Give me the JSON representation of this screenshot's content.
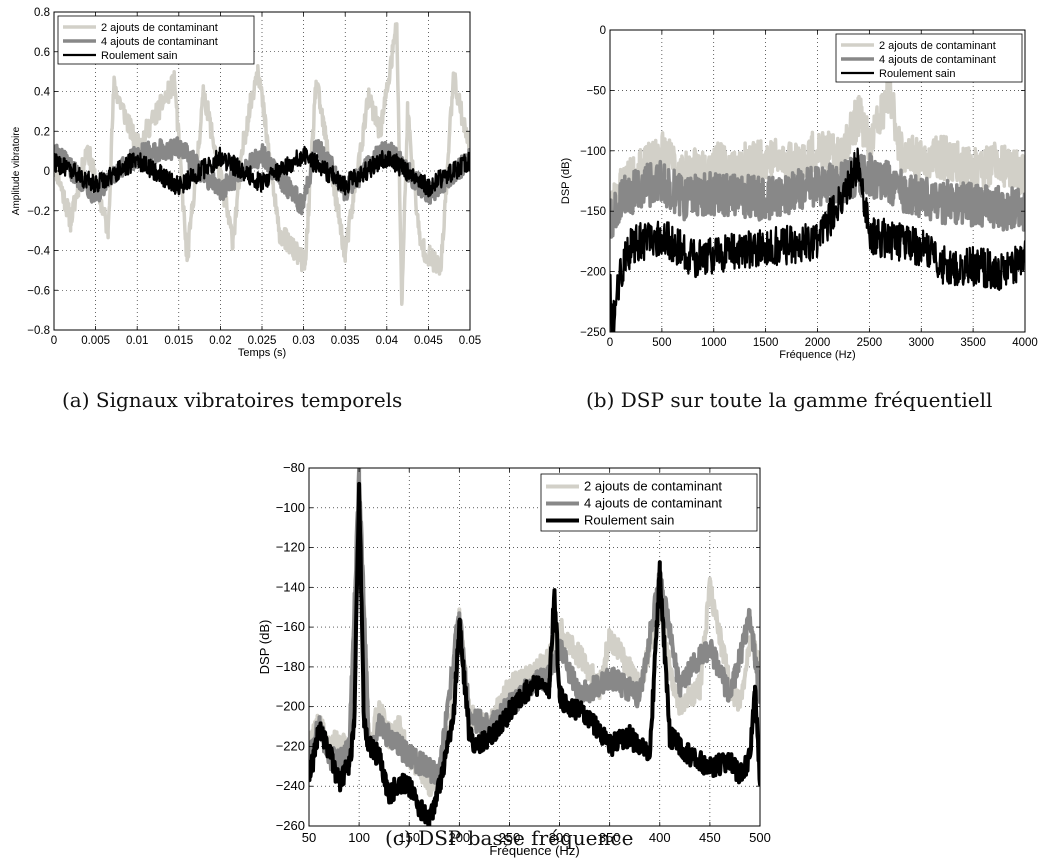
{
  "colors": {
    "light_gray": "#d2d0c8",
    "mid_gray": "#888888",
    "black": "#000000"
  },
  "captions": {
    "a": "(a) Signaux vibratoires temporels",
    "b": "(b) DSP sur toute la gamme fréquentiell",
    "c": "(c) DSP basse fréquence"
  },
  "chart_data": [
    {
      "id": "a",
      "type": "line",
      "title": "",
      "xlabel": "Temps (s)",
      "ylabel": "Amplitude vibratoire",
      "xlim": [
        0,
        0.05
      ],
      "ylim": [
        -0.8,
        0.8
      ],
      "xticks": [
        0,
        0.005,
        0.01,
        0.015,
        0.02,
        0.025,
        0.03,
        0.035,
        0.04,
        0.045,
        0.05
      ],
      "xtick_labels": [
        "0",
        "0.005",
        "0.01",
        "0.015",
        "0.02",
        "0.025",
        "0.03",
        "0.035",
        "0.04",
        "0.045",
        "0.05"
      ],
      "yticks": [
        -0.8,
        -0.6,
        -0.4,
        -0.2,
        0,
        0.2,
        0.4,
        0.6,
        0.8
      ],
      "ytick_labels": [
        "−0.8",
        "−0.6",
        "−0.4",
        "−0.2",
        "0",
        "0.2",
        "0.4",
        "0.6",
        "0.8"
      ],
      "grid": true,
      "legend_position": "top-left",
      "series": [
        {
          "name": "2 ajouts de contaminant",
          "color": "light_gray",
          "x": [
            0,
            0.002,
            0.004,
            0.0065,
            0.0072,
            0.01,
            0.0145,
            0.016,
            0.018,
            0.0215,
            0.0228,
            0.0245,
            0.027,
            0.0302,
            0.0315,
            0.035,
            0.0378,
            0.0392,
            0.0402,
            0.0412,
            0.0418,
            0.0425,
            0.044,
            0.0465,
            0.048,
            0.05
          ],
          "y": [
            0.05,
            -0.25,
            0.12,
            -0.3,
            0.43,
            0.12,
            0.45,
            -0.45,
            0.4,
            -0.35,
            0.15,
            0.53,
            -0.3,
            -0.47,
            0.45,
            -0.42,
            0.37,
            0.2,
            0.45,
            0.74,
            -0.67,
            0.3,
            -0.37,
            -0.5,
            0.48,
            0.1
          ]
        },
        {
          "name": "4 ajouts de contaminant",
          "color": "mid_gray",
          "x": [
            0,
            0.005,
            0.01,
            0.015,
            0.02,
            0.025,
            0.03,
            0.0315,
            0.035,
            0.04,
            0.045,
            0.05
          ],
          "y": [
            0.1,
            -0.12,
            0.08,
            0.12,
            -0.1,
            0.08,
            -0.18,
            0.15,
            -0.1,
            0.12,
            -0.12,
            0.06
          ]
        },
        {
          "name": "Roulement sain",
          "color": "black",
          "x": [
            0,
            0.005,
            0.01,
            0.015,
            0.02,
            0.025,
            0.03,
            0.035,
            0.04,
            0.045,
            0.05
          ],
          "y": [
            0.05,
            -0.07,
            0.06,
            -0.08,
            0.07,
            -0.06,
            0.08,
            -0.07,
            0.07,
            -0.08,
            0.05
          ]
        }
      ]
    },
    {
      "id": "b",
      "type": "line",
      "title": "",
      "xlabel": "Fréquence (Hz)",
      "ylabel": "DSP (dB)",
      "xlim": [
        0,
        4000
      ],
      "ylim": [
        -250,
        0
      ],
      "xticks": [
        0,
        500,
        1000,
        1500,
        2000,
        2500,
        3000,
        3500,
        4000
      ],
      "xtick_labels": [
        "0",
        "500",
        "1000",
        "1500",
        "2000",
        "2500",
        "3000",
        "3500",
        "4000"
      ],
      "yticks": [
        -250,
        -200,
        -150,
        -100,
        -50,
        0
      ],
      "ytick_labels": [
        "−250",
        "−200",
        "−150",
        "−100",
        "−50",
        "0"
      ],
      "grid": true,
      "legend_position": "top-right",
      "series": [
        {
          "name": "2 ajouts de contaminant",
          "color": "light_gray",
          "x": [
            0,
            100,
            250,
            400,
            500,
            700,
            1000,
            1200,
            1500,
            1800,
            2000,
            2200,
            2400,
            2500,
            2700,
            2800,
            3000,
            3200,
            3500,
            3700,
            4000
          ],
          "y": [
            -150,
            -130,
            -120,
            -110,
            -100,
            -120,
            -110,
            -115,
            -105,
            -110,
            -100,
            -105,
            -70,
            -95,
            -50,
            -100,
            -110,
            -105,
            -115,
            -110,
            -120
          ]
        },
        {
          "name": "4 ajouts de contaminant",
          "color": "mid_gray",
          "x": [
            0,
            100,
            300,
            500,
            700,
            1000,
            1500,
            2000,
            2500,
            3000,
            3500,
            4000
          ],
          "y": [
            -160,
            -140,
            -130,
            -125,
            -140,
            -135,
            -140,
            -130,
            -120,
            -140,
            -145,
            -150
          ]
        },
        {
          "name": "Roulement sain",
          "color": "black",
          "x": [
            0,
            20,
            50,
            100,
            200,
            300,
            500,
            800,
            1000,
            1500,
            2000,
            2400,
            2500,
            2800,
            3000,
            3300,
            3500,
            3800,
            4000
          ],
          "y": [
            -210,
            -245,
            -230,
            -200,
            -180,
            -175,
            -170,
            -190,
            -185,
            -180,
            -175,
            -110,
            -170,
            -175,
            -180,
            -200,
            -195,
            -200,
            -190
          ]
        }
      ]
    },
    {
      "id": "c",
      "type": "line",
      "title": "",
      "xlabel": "Fréquence (Hz)",
      "ylabel": "DSP (dB)",
      "xlim": [
        50,
        500
      ],
      "ylim": [
        -260,
        -80
      ],
      "xticks": [
        50,
        100,
        150,
        200,
        250,
        300,
        350,
        400,
        450,
        500
      ],
      "xtick_labels": [
        "50",
        "100",
        "150",
        "200",
        "250",
        "300",
        "350",
        "400",
        "450",
        "500"
      ],
      "yticks": [
        -260,
        -240,
        -220,
        -200,
        -180,
        -160,
        -140,
        -120,
        -100,
        -80
      ],
      "ytick_labels": [
        "−260",
        "−240",
        "−220",
        "−200",
        "−180",
        "−160",
        "−140",
        "−120",
        "−100",
        "−80"
      ],
      "grid": true,
      "legend_position": "top-right",
      "series": [
        {
          "name": "2 ajouts de contaminant",
          "color": "light_gray",
          "x": [
            50,
            60,
            70,
            80,
            90,
            100,
            110,
            120,
            130,
            140,
            150,
            160,
            170,
            180,
            190,
            200,
            210,
            230,
            250,
            270,
            290,
            300,
            320,
            340,
            350,
            380,
            400,
            410,
            420,
            440,
            450,
            470,
            480,
            490,
            500
          ],
          "y": [
            -215,
            -208,
            -222,
            -215,
            -225,
            -92,
            -220,
            -200,
            -215,
            -210,
            -225,
            -230,
            -240,
            -235,
            -215,
            -155,
            -205,
            -210,
            -190,
            -185,
            -175,
            -160,
            -175,
            -190,
            -165,
            -190,
            -150,
            -180,
            -200,
            -190,
            -140,
            -190,
            -200,
            -165,
            -180
          ]
        },
        {
          "name": "4 ajouts de contaminant",
          "color": "mid_gray",
          "x": [
            50,
            60,
            70,
            80,
            90,
            100,
            110,
            120,
            150,
            180,
            200,
            210,
            230,
            250,
            270,
            290,
            300,
            320,
            350,
            380,
            400,
            420,
            440,
            450,
            470,
            490,
            500
          ],
          "y": [
            -225,
            -210,
            -225,
            -228,
            -222,
            -85,
            -222,
            -210,
            -225,
            -235,
            -153,
            -205,
            -210,
            -200,
            -190,
            -185,
            -170,
            -195,
            -185,
            -195,
            -135,
            -190,
            -175,
            -170,
            -195,
            -155,
            -195
          ]
        },
        {
          "name": "Roulement sain",
          "color": "black",
          "x": [
            50,
            55,
            60,
            70,
            80,
            90,
            95,
            100,
            105,
            110,
            120,
            130,
            140,
            150,
            160,
            170,
            180,
            190,
            195,
            200,
            210,
            220,
            240,
            260,
            280,
            290,
            295,
            300,
            310,
            330,
            350,
            370,
            390,
            400,
            410,
            430,
            450,
            470,
            480,
            490,
            495,
            500
          ],
          "y": [
            -235,
            -225,
            -210,
            -222,
            -238,
            -230,
            -210,
            -88,
            -210,
            -220,
            -225,
            -245,
            -238,
            -240,
            -250,
            -258,
            -240,
            -215,
            -200,
            -158,
            -215,
            -220,
            -210,
            -195,
            -188,
            -190,
            -142,
            -195,
            -200,
            -205,
            -220,
            -215,
            -225,
            -132,
            -215,
            -225,
            -230,
            -228,
            -235,
            -225,
            -190,
            -238
          ]
        }
      ]
    }
  ]
}
